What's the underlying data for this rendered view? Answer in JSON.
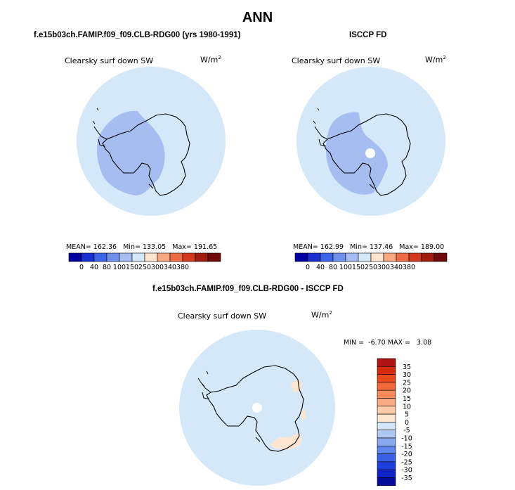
{
  "main_title": "ANN",
  "panels": [
    {
      "header": "f.e15b03ch.FAMIP.f09_f09.CLB-RDG00 (yrs 1980-1991)",
      "label": "Clearsky surf down SW",
      "unit_base": "W/m",
      "unit_exp": "2",
      "stats": {
        "mean_label": "MEAN=",
        "mean": "162.36",
        "min_label": "Min=",
        "min": "133.05",
        "max_label": "Max=",
        "max": "191.65"
      }
    },
    {
      "header": "ISCCP FD",
      "label": "Clearsky surf down SW",
      "unit_base": "W/m",
      "unit_exp": "2",
      "stats": {
        "mean_label": "MEAN=",
        "mean": "162.99",
        "min_label": "Min=",
        "min": "137.46",
        "max_label": "Max=",
        "max": "189.00"
      }
    },
    {
      "header": "f.e15b03ch.FAMIP.f09_f09.CLB-RDG00 - ISCCP FD",
      "label": "Clearsky surf down SW",
      "unit_base": "W/m",
      "unit_exp": "2",
      "stats": {
        "min_label": "MIN =",
        "min": "-6.70",
        "max_label": "MAX =",
        "max": "3.08"
      }
    }
  ],
  "chart_data": [
    {
      "type": "heatmap",
      "projection": "south-polar-stereographic",
      "title": "Clearsky surf down SW",
      "units": "W/m2",
      "levels": [
        "0",
        "40",
        "80",
        "100",
        "150",
        "250",
        "300",
        "340",
        "380"
      ],
      "colors": [
        "#0000A0",
        "#1A2FD0",
        "#3D63E6",
        "#6E8FEA",
        "#A6BDF2",
        "#D4E8FA",
        "#FFE5D0",
        "#F7A880",
        "#EC6B45",
        "#D13A20",
        "#A01C0E",
        "#6E0A0A"
      ],
      "mean": 162.36,
      "min": 133.05,
      "max": 191.65,
      "regions": [
        {
          "name": "background-band",
          "bin_color": "#D4E8FA"
        },
        {
          "name": "interior-band",
          "bin_color": "#A6BDF2"
        }
      ]
    },
    {
      "type": "heatmap",
      "projection": "south-polar-stereographic",
      "title": "Clearsky surf down SW",
      "units": "W/m2",
      "levels": [
        "0",
        "40",
        "80",
        "100",
        "150",
        "250",
        "300",
        "340",
        "380"
      ],
      "colors": [
        "#0000A0",
        "#1A2FD0",
        "#3D63E6",
        "#6E8FEA",
        "#A6BDF2",
        "#D4E8FA",
        "#FFE5D0",
        "#F7A880",
        "#EC6B45",
        "#D13A20",
        "#A01C0E",
        "#6E0A0A"
      ],
      "mean": 162.99,
      "min": 137.46,
      "max": 189.0,
      "regions": [
        {
          "name": "background-band",
          "bin_color": "#D4E8FA"
        },
        {
          "name": "interior-band",
          "bin_color": "#A6BDF2"
        },
        {
          "name": "pole-missing",
          "bin_color": "#FFFFFF"
        }
      ]
    },
    {
      "type": "heatmap",
      "projection": "south-polar-stereographic",
      "title": "Clearsky surf down SW",
      "units": "W/m2",
      "levels": [
        "35",
        "30",
        "25",
        "20",
        "15",
        "10",
        "5",
        "0",
        "-5",
        "-10",
        "-15",
        "-20",
        "-25",
        "-30",
        "-35"
      ],
      "colors": [
        "#B01414",
        "#D42A0E",
        "#EA4A20",
        "#F26A3C",
        "#F58A5C",
        "#F8AA82",
        "#FBCCAA",
        "#FCE6D2",
        "#D4E8FA",
        "#AFC8F2",
        "#8AA8EE",
        "#5E86EC",
        "#3A60E6",
        "#1F3FDC",
        "#0F22C8",
        "#050A9A"
      ],
      "min": -6.7,
      "max": 3.08,
      "regions": [
        {
          "name": "background-band",
          "bin_color": "#D4E8FA"
        },
        {
          "name": "coastal-positive",
          "bin_color": "#FCE6D2"
        },
        {
          "name": "pole-missing",
          "bin_color": "#FFFFFF"
        }
      ]
    }
  ]
}
